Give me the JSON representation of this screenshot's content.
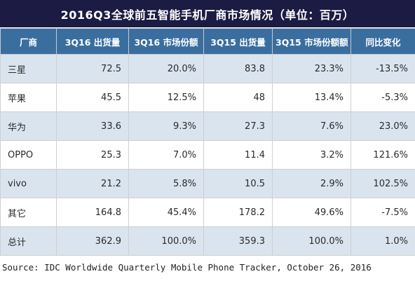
{
  "chart_data": {
    "type": "table",
    "title": "2016Q3全球前五智能手机厂商市场情况（单位：百万）",
    "columns": [
      "厂商",
      "3Q16 出货量",
      "3Q16 市场份额",
      "3Q15 出货量",
      "3Q15 市场份额额",
      "同比变化"
    ],
    "rows": [
      [
        "三星",
        "72.5",
        "20.0%",
        "83.8",
        "23.3%",
        "-13.5%"
      ],
      [
        "苹果",
        "45.5",
        "12.5%",
        "48",
        "13.4%",
        "-5.3%"
      ],
      [
        "华为",
        "33.6",
        "9.3%",
        "27.3",
        "7.6%",
        "23.0%"
      ],
      [
        "OPPO",
        "25.3",
        "7.0%",
        "11.4",
        "3.2%",
        "121.6%"
      ],
      [
        "vivo",
        "21.2",
        "5.8%",
        "10.5",
        "2.9%",
        "102.5%"
      ],
      [
        "其它",
        "164.8",
        "45.4%",
        "178.2",
        "49.6%",
        "-7.5%"
      ],
      [
        "总计",
        "362.9",
        "100.0%",
        "359.3",
        "100.0%",
        "1.0%"
      ]
    ],
    "source": "Source: IDC Worldwide Quarterly Mobile Phone Tracker, October 26, 2016",
    "colors": {
      "title_bg": "#1b1b44",
      "header_bg": "#3a6e9f",
      "stripe_bg": "#d9e4ef",
      "positive_change": "#e0141e",
      "negative_change": "#1aa35a"
    }
  }
}
